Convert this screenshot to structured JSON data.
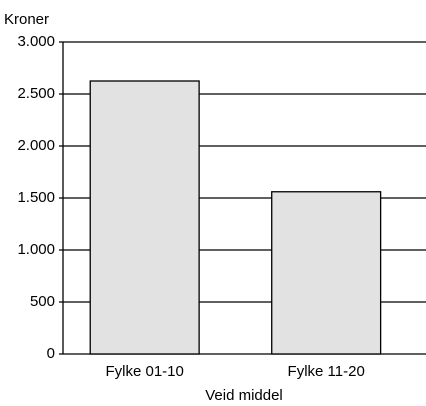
{
  "chart_data": {
    "type": "bar",
    "ylabel": "Kroner",
    "xlabel": "Veid middel",
    "categories": [
      "Fylke 01-10",
      "Fylke 11-20"
    ],
    "values": [
      2625,
      1560
    ],
    "color": "#e2e2e2",
    "ylim": [
      0,
      3000
    ],
    "yticks": [
      0,
      500,
      {
        "value": 1000,
        "label": "1.000"
      },
      {
        "value": 1500,
        "label": "1.500"
      },
      {
        "value": 2000,
        "label": "2.000"
      },
      {
        "value": 2500,
        "label": "2.500"
      },
      {
        "value": 3000,
        "label": "3.000"
      }
    ],
    "grid": true
  }
}
